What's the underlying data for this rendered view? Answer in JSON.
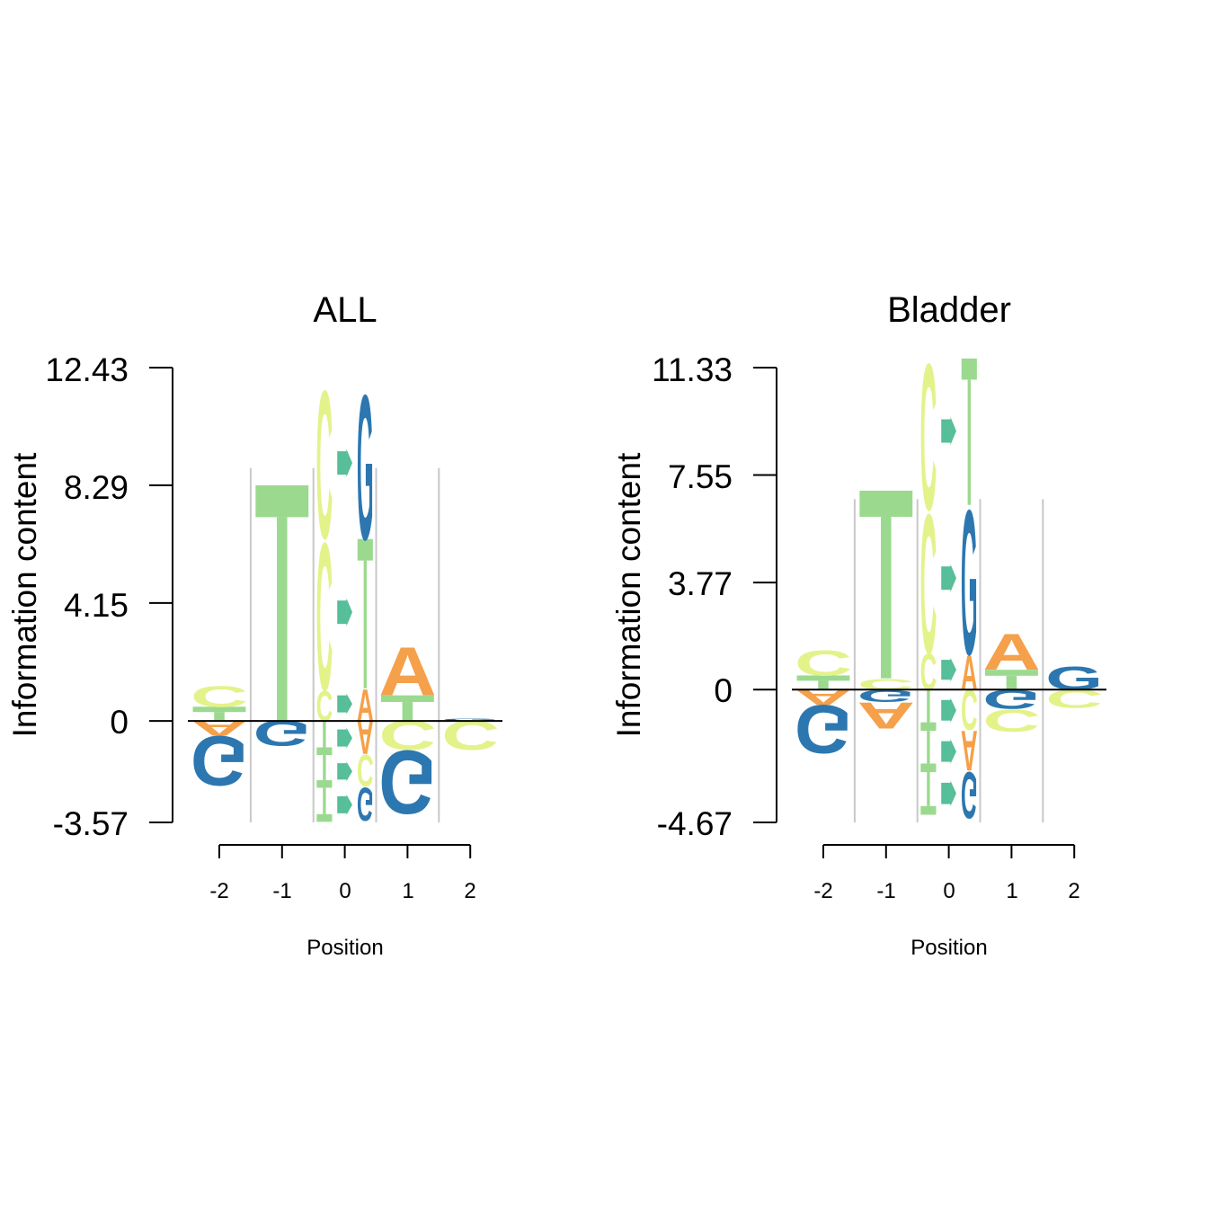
{
  "colors": {
    "A": "#F5A04A",
    "C": "#E4F28A",
    "G": "#2C77B0",
    "T": "#9BD98F",
    "M": "#56BE98",
    "axis": "#000000",
    "divider": "#c8c8c8"
  },
  "chart_data": [
    {
      "type": "sequence-logo",
      "title": "ALL",
      "xlabel": "Position",
      "ylabel": "Information content",
      "ylim": [
        -3.57,
        12.43
      ],
      "yticks": [
        "12.43",
        "8.29",
        "4.15",
        "0",
        "-3.57"
      ],
      "ytick_values": [
        12.43,
        8.29,
        4.15,
        0,
        -3.57
      ],
      "xticks": [
        "-2",
        "-1",
        "0",
        "1",
        "2"
      ],
      "divider_top": 8.9,
      "positions": [
        {
          "pos": -2,
          "up": [
            {
              "l": "T",
              "h": 0.5
            },
            {
              "l": "C",
              "h": 0.75
            }
          ],
          "down": [
            {
              "l": "A",
              "h": 0.55
            },
            {
              "l": "G",
              "h": 1.8
            }
          ]
        },
        {
          "pos": -1,
          "up": [
            {
              "l": "T",
              "h": 8.29
            }
          ],
          "down": [
            {
              "l": "G",
              "h": 0.9
            }
          ]
        },
        {
          "pos": 0,
          "sub": [
            {
              "up": [
                {
                  "l": "C",
                  "h": 1.1
                },
                {
                  "l": "C",
                  "h": 5.35
                },
                {
                  "l": "C",
                  "h": 5.35
                }
              ],
              "down": [
                {
                  "l": "T",
                  "h": 1.2
                },
                {
                  "l": "T",
                  "h": 1.15
                },
                {
                  "l": "T",
                  "h": 1.2
                }
              ]
            },
            {
              "up": [
                {
                  "l": "M",
                  "h": 1.2
                },
                {
                  "l": "M",
                  "h": 5.25
                },
                {
                  "l": "M",
                  "h": 5.25
                }
              ],
              "down": [
                {
                  "l": "M",
                  "h": 1.2
                },
                {
                  "l": "M",
                  "h": 1.15
                },
                {
                  "l": "M",
                  "h": 1.2
                }
              ]
            },
            {
              "up": [
                {
                  "l": "A",
                  "h": 1.15
                },
                {
                  "l": "T",
                  "h": 5.25
                },
                {
                  "l": "G",
                  "h": 5.25
                }
              ],
              "down": [
                {
                  "l": "A",
                  "h": 1.2
                },
                {
                  "l": "C",
                  "h": 1.15
                },
                {
                  "l": "G",
                  "h": 1.2
                }
              ]
            }
          ]
        },
        {
          "pos": 1,
          "up": [
            {
              "l": "T",
              "h": 0.9
            },
            {
              "l": "A",
              "h": 1.75
            }
          ],
          "down": [
            {
              "l": "C",
              "h": 1.05
            },
            {
              "l": "G",
              "h": 2.3
            }
          ]
        },
        {
          "pos": 2,
          "up": [
            {
              "l": "G",
              "h": 0.08
            }
          ],
          "down": [
            {
              "l": "C",
              "h": 1.05
            }
          ]
        }
      ]
    },
    {
      "type": "sequence-logo",
      "title": "Bladder",
      "xlabel": "Position",
      "ylabel": "Information content",
      "ylim": [
        -4.67,
        11.33
      ],
      "yticks": [
        "11.33",
        "7.55",
        "3.77",
        "0",
        "-4.67"
      ],
      "ytick_values": [
        11.33,
        7.55,
        3.77,
        0,
        -4.67
      ],
      "xticks": [
        "-2",
        "-1",
        "0",
        "1",
        "2"
      ],
      "divider_top": 6.7,
      "positions": [
        {
          "pos": -2,
          "up": [
            {
              "l": "T",
              "h": 0.5
            },
            {
              "l": "C",
              "h": 0.9
            }
          ],
          "down": [
            {
              "l": "A",
              "h": 0.55
            },
            {
              "l": "G",
              "h": 1.75
            }
          ]
        },
        {
          "pos": -1,
          "up": [
            {
              "l": "C",
              "h": 0.4
            },
            {
              "l": "T",
              "h": 6.6
            }
          ],
          "down": [
            {
              "l": "G",
              "h": 0.45
            },
            {
              "l": "A",
              "h": 0.95
            }
          ]
        },
        {
          "pos": 0,
          "sub": [
            {
              "up": [
                {
                  "l": "C",
                  "h": 1.3
                },
                {
                  "l": "C",
                  "h": 5.05
                },
                {
                  "l": "C",
                  "h": 5.3
                }
              ],
              "down": [
                {
                  "l": "T",
                  "h": 1.45
                },
                {
                  "l": "T",
                  "h": 1.45
                },
                {
                  "l": "T",
                  "h": 1.5
                }
              ]
            },
            {
              "up": [
                {
                  "l": "M",
                  "h": 1.4
                },
                {
                  "l": "M",
                  "h": 5.05
                },
                {
                  "l": "M",
                  "h": 5.3
                }
              ],
              "down": [
                {
                  "l": "M",
                  "h": 1.45
                },
                {
                  "l": "M",
                  "h": 1.45
                },
                {
                  "l": "M",
                  "h": 1.5
                }
              ]
            },
            {
              "up": [
                {
                  "l": "A",
                  "h": 1.25
                },
                {
                  "l": "G",
                  "h": 5.25
                },
                {
                  "l": "T",
                  "h": 5.15
                }
              ],
              "down": [
                {
                  "l": "C",
                  "h": 1.45
                },
                {
                  "l": "A",
                  "h": 1.45
                },
                {
                  "l": "G",
                  "h": 1.7
                }
              ]
            }
          ]
        },
        {
          "pos": 1,
          "up": [
            {
              "l": "T",
              "h": 0.7
            },
            {
              "l": "A",
              "h": 1.3
            }
          ],
          "down": [
            {
              "l": "G",
              "h": 0.7
            },
            {
              "l": "C",
              "h": 0.8
            }
          ]
        },
        {
          "pos": 2,
          "up": [
            {
              "l": "G",
              "h": 0.85
            }
          ],
          "down": [
            {
              "l": "C",
              "h": 0.65
            }
          ]
        }
      ]
    }
  ]
}
